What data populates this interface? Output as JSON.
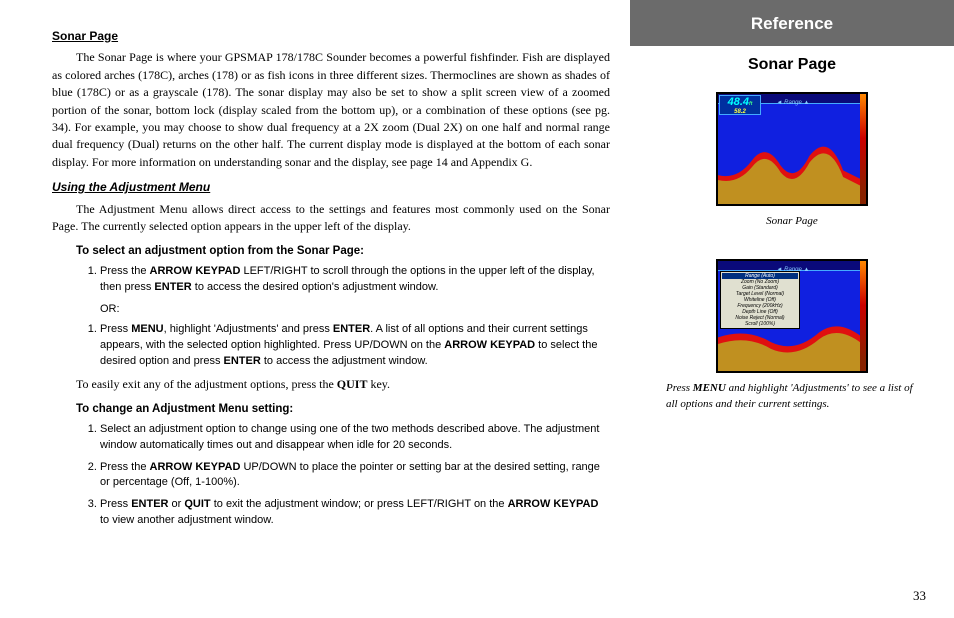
{
  "main": {
    "h1": "Sonar Page",
    "p1": "The Sonar Page is where your GPSMAP 178/178C Sounder becomes a powerful fishfinder. Fish are displayed as colored arches (178C), arches (178) or as fish icons in three different sizes. Thermoclines are shown as shades of blue (178C) or as a grayscale (178). The sonar display may also be set to show a split screen view of a zoomed portion of the sonar, bottom lock (display scaled from the bottom up), or a combination of these options (see pg. 34). For example, you may choose to show dual frequency at a 2X zoom (Dual 2X) on one half and normal range dual frequency (Dual) returns on the other half. The current display mode is displayed at the bottom of each sonar display. For more information on understanding sonar and the display, see page 14 and Appendix G.",
    "h2": "Using the Adjustment Menu",
    "p2": "The Adjustment Menu allows direct access to the settings and features most commonly used on the Sonar Page. The currently selected option appears in the upper left of the display.",
    "instr1_title": "To select an adjustment option from the Sonar Page:",
    "instr1_1_a": "Press the ",
    "instr1_1_b": "ARROW KEYPAD",
    "instr1_1_c": " LEFT/RIGHT to scroll through the options in the upper left of the display, then press ",
    "instr1_1_d": "ENTER",
    "instr1_1_e": " to access the desired option's adjustment window.",
    "or": "OR:",
    "instr1_2_a": "Press ",
    "instr1_2_b": "MENU",
    "instr1_2_c": ", highlight 'Adjustments' and press ",
    "instr1_2_d": "ENTER",
    "instr1_2_e": ". A list of all options and their current settings appears, with the selected option highlighted. Press UP/DOWN on the ",
    "instr1_2_f": "ARROW KEYPAD",
    "instr1_2_g": " to select the desired option and press ",
    "instr1_2_h": "ENTER",
    "instr1_2_i": " to access the adjustment window.",
    "easy_a": "To easily exit any of the adjustment options, press the ",
    "easy_b": "QUIT",
    "easy_c": " key.",
    "instr2_title": "To change an Adjustment Menu setting:",
    "instr2_1": "Select an adjustment option to change using one of the two methods described above. The adjustment window automatically times out and disappear when idle for 20 seconds.",
    "instr2_2_a": "Press the ",
    "instr2_2_b": "ARROW KEYPAD",
    "instr2_2_c": " UP/DOWN to place the pointer or setting bar at the desired setting, range or percentage (Off, 1-100%).",
    "instr2_3_a": "Press ",
    "instr2_3_b": "ENTER",
    "instr2_3_c": " or ",
    "instr2_3_d": "QUIT",
    "instr2_3_e": " to exit the adjustment window; or press LEFT/RIGHT on the ",
    "instr2_3_f": "ARROW KEYPAD",
    "instr2_3_g": " to view another adjustment window."
  },
  "sidebar": {
    "header": "Reference",
    "subtitle": "Sonar Page",
    "caption1": "Sonar Page",
    "caption2_a": "Press ",
    "caption2_b": "MENU",
    "caption2_c": " and highlight 'Adjustments' to see a list of all options and their current settings."
  },
  "sonar1": {
    "range_label": "◄ Range ▲",
    "depth": "48.4",
    "unit": "ft",
    "sub": "58.2"
  },
  "sonar2": {
    "range_label": "◄ Range ▲",
    "menu": [
      "Range        (Auto)",
      "Zoom         (No Zoom)",
      "Gain         (Standard)",
      "Target Level (Normal)",
      "Whiteline    (Off)",
      "Frequency    (200kHz)",
      "Depth Line   (Off)",
      "Noise Reject (Normal)",
      "Scroll       (100%)"
    ]
  },
  "page_num": "33"
}
